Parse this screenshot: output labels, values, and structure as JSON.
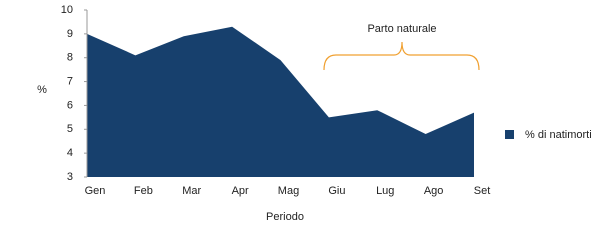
{
  "chart_data": {
    "type": "area",
    "categories": [
      "Gen",
      "Feb",
      "Mar",
      "Apr",
      "Mag",
      "Giu",
      "Lug",
      "Ago",
      "Set"
    ],
    "series": [
      {
        "name": "% di natimorti",
        "color": "#17406d",
        "values": [
          9.0,
          8.1,
          8.9,
          9.3,
          7.9,
          5.5,
          5.8,
          4.8,
          5.7
        ]
      }
    ],
    "ylim": [
      3,
      10
    ],
    "yticks": [
      3,
      4,
      5,
      6,
      7,
      8,
      9,
      10
    ],
    "y_label": "%",
    "x_label": "Periodo",
    "annotation": "Parto naturale",
    "legend": "right",
    "grid": false
  }
}
